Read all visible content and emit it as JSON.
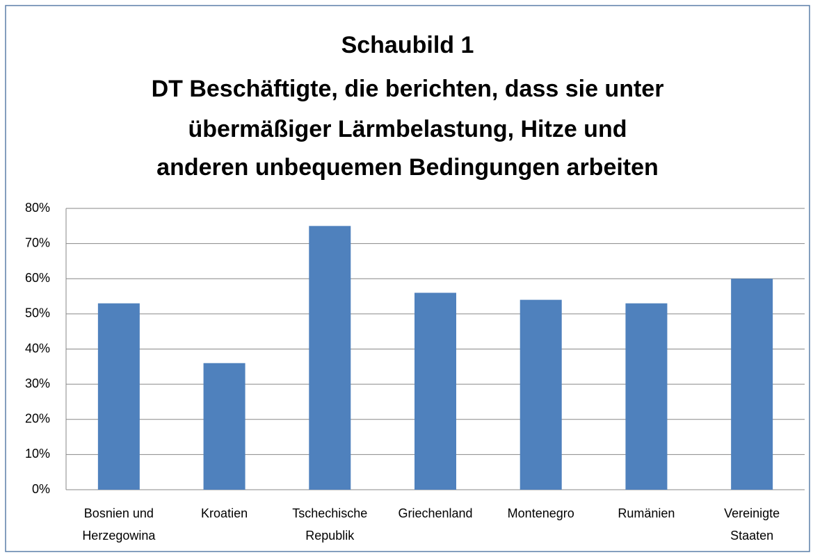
{
  "chart_data": {
    "type": "bar",
    "title": [
      "Schaubild 1",
      "DT Beschäftigte, die berichten, dass sie unter",
      "übermäßiger Lärmbelastung, Hitze und",
      "anderen unbequemen Bedingungen arbeiten"
    ],
    "categories": [
      [
        "Bosnien und",
        "Herzegowina"
      ],
      [
        "Kroatien"
      ],
      [
        "Tschechische",
        "Republik"
      ],
      [
        "Griechenland"
      ],
      [
        "Montenegro"
      ],
      [
        "Rumänien"
      ],
      [
        "Vereinigte",
        "Staaten"
      ]
    ],
    "values": [
      53,
      36,
      75,
      56,
      54,
      53,
      60
    ],
    "color": "#4f81bd",
    "ylim": [
      0,
      80
    ],
    "yticks": [
      {
        "value": 0,
        "label": "0%"
      },
      {
        "value": 10,
        "label": "10%"
      },
      {
        "value": 20,
        "label": "20%"
      },
      {
        "value": 30,
        "label": "30%"
      },
      {
        "value": 40,
        "label": "40%"
      },
      {
        "value": 50,
        "label": "50%"
      },
      {
        "value": 60,
        "label": "60%"
      },
      {
        "value": 70,
        "label": "70%"
      },
      {
        "value": 80,
        "label": "80%"
      }
    ],
    "grid": true
  }
}
